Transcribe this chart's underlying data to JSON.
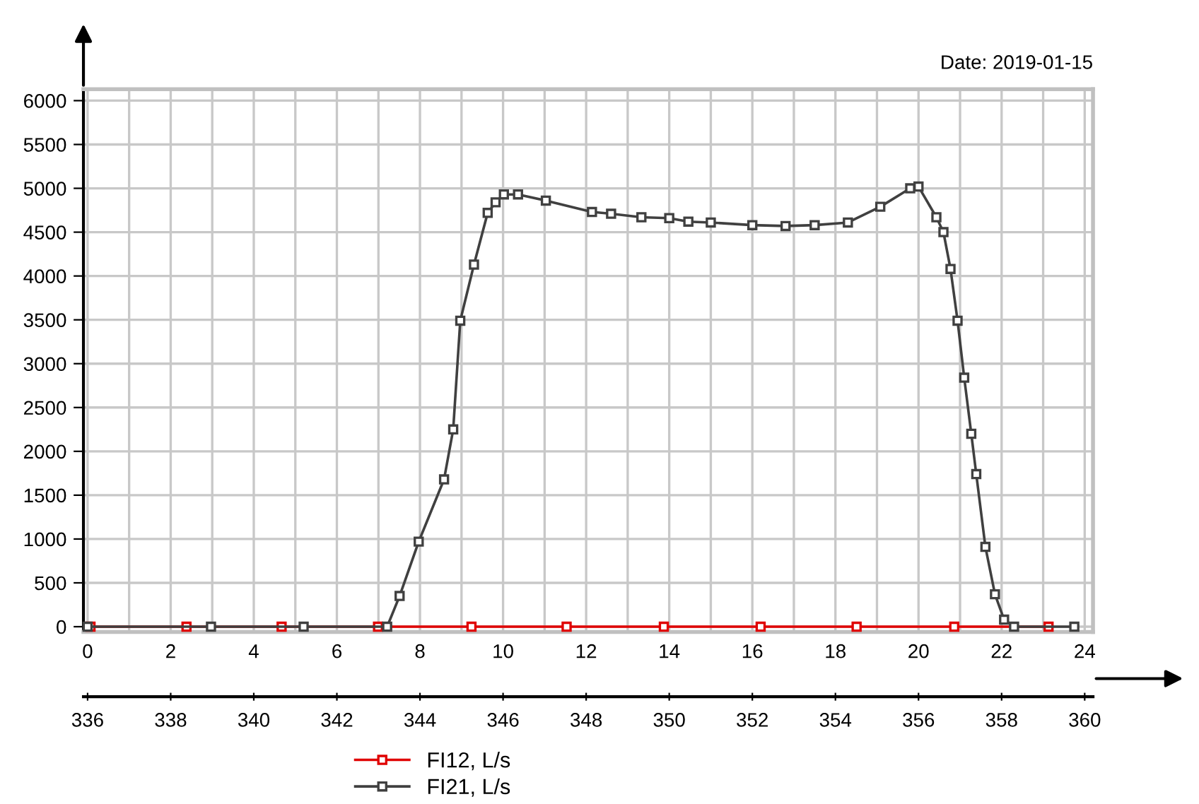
{
  "chart_data": {
    "type": "line",
    "annotations": [
      "Date: 2019-01-15"
    ],
    "xlim": [
      -0.1,
      24.2
    ],
    "xticks": [
      0,
      2,
      4,
      6,
      8,
      10,
      12,
      14,
      16,
      18,
      20,
      22,
      24
    ],
    "x2lim": [
      335.9,
      360.2
    ],
    "x2ticks": [
      336,
      338,
      340,
      342,
      344,
      346,
      348,
      350,
      352,
      354,
      356,
      358,
      360
    ],
    "ylim": [
      -60,
      6130
    ],
    "yticks": [
      0,
      500,
      1000,
      1500,
      2000,
      2500,
      3000,
      3500,
      4000,
      4500,
      5000,
      5500,
      6000
    ],
    "grid": true,
    "legend": "bottom",
    "marker": "square",
    "line_style": "solid",
    "series": [
      {
        "name": "FI12, L/s",
        "color": "#e00000",
        "x": [
          0.07,
          2.38,
          4.67,
          6.99,
          9.24,
          11.53,
          13.87,
          16.2,
          18.51,
          20.86,
          23.13
        ],
        "values": [
          0,
          0,
          0,
          0,
          0,
          0,
          0,
          0,
          0,
          0,
          0
        ]
      },
      {
        "name": "FI21, L/s",
        "color": "#404040",
        "x": [
          0,
          2.97,
          5.2,
          7.21,
          7.51,
          7.97,
          8.58,
          8.8,
          8.97,
          9.3,
          9.63,
          9.82,
          10.02,
          10.36,
          11.03,
          12.14,
          12.6,
          13.33,
          14.0,
          14.46,
          15.0,
          16.0,
          16.8,
          17.5,
          18.3,
          19.08,
          19.8,
          20.0,
          20.43,
          20.6,
          20.77,
          20.94,
          21.1,
          21.27,
          21.39,
          21.61,
          21.84,
          22.06,
          22.3,
          23.75
        ],
        "values": [
          0,
          0,
          0,
          0,
          350,
          970,
          1680,
          2250,
          3490,
          4130,
          4720,
          4840,
          4930,
          4930,
          4860,
          4730,
          4710,
          4670,
          4660,
          4620,
          4610,
          4580,
          4570,
          4580,
          4610,
          4790,
          5000,
          5020,
          4670,
          4500,
          4080,
          3490,
          2840,
          2200,
          1740,
          910,
          370,
          80,
          0,
          0
        ]
      }
    ]
  }
}
